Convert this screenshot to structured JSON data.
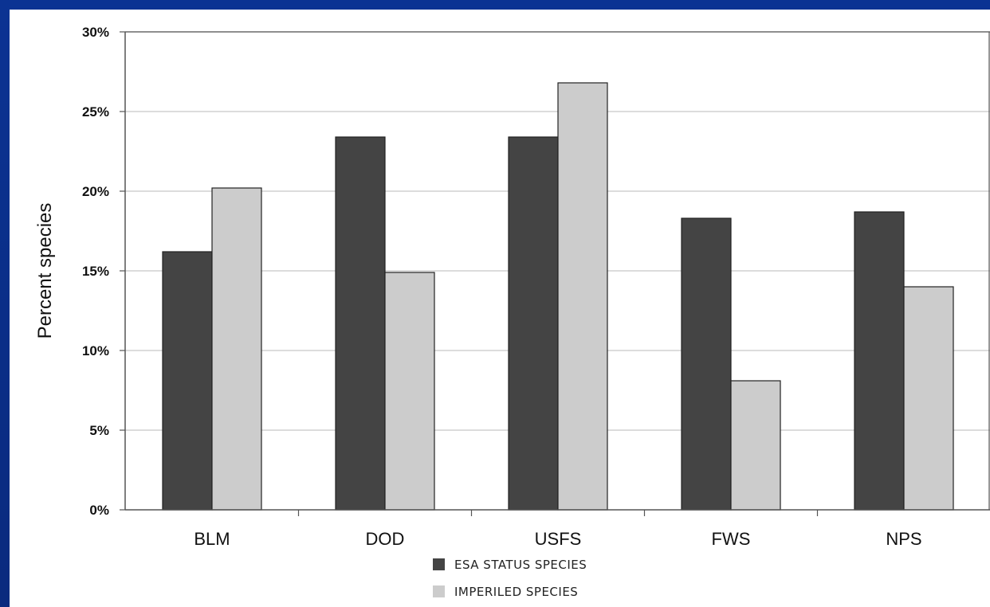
{
  "chart_data": {
    "type": "bar",
    "ylabel": "Percent species",
    "xlabel": "",
    "ylim": [
      0,
      30
    ],
    "yticks": [
      "0%",
      "5%",
      "10%",
      "15%",
      "20%",
      "25%",
      "30%"
    ],
    "categories": [
      "BLM",
      "DOD",
      "USFS",
      "FWS",
      "NPS"
    ],
    "series": [
      {
        "name": "ESA STATUS SPECIES",
        "color": "#444444",
        "values": [
          16.2,
          23.4,
          23.4,
          18.3,
          18.7
        ]
      },
      {
        "name": "IMPERILED SPECIES",
        "color": "#cccccc",
        "values": [
          20.2,
          14.9,
          26.8,
          8.1,
          14.0
        ]
      }
    ],
    "grid": true,
    "legend_position": "bottom-center"
  },
  "colors": {
    "frame": "#0a2f8c",
    "panel": "#ffffff",
    "gridline": "#c8c8c8",
    "axis": "#555555"
  }
}
